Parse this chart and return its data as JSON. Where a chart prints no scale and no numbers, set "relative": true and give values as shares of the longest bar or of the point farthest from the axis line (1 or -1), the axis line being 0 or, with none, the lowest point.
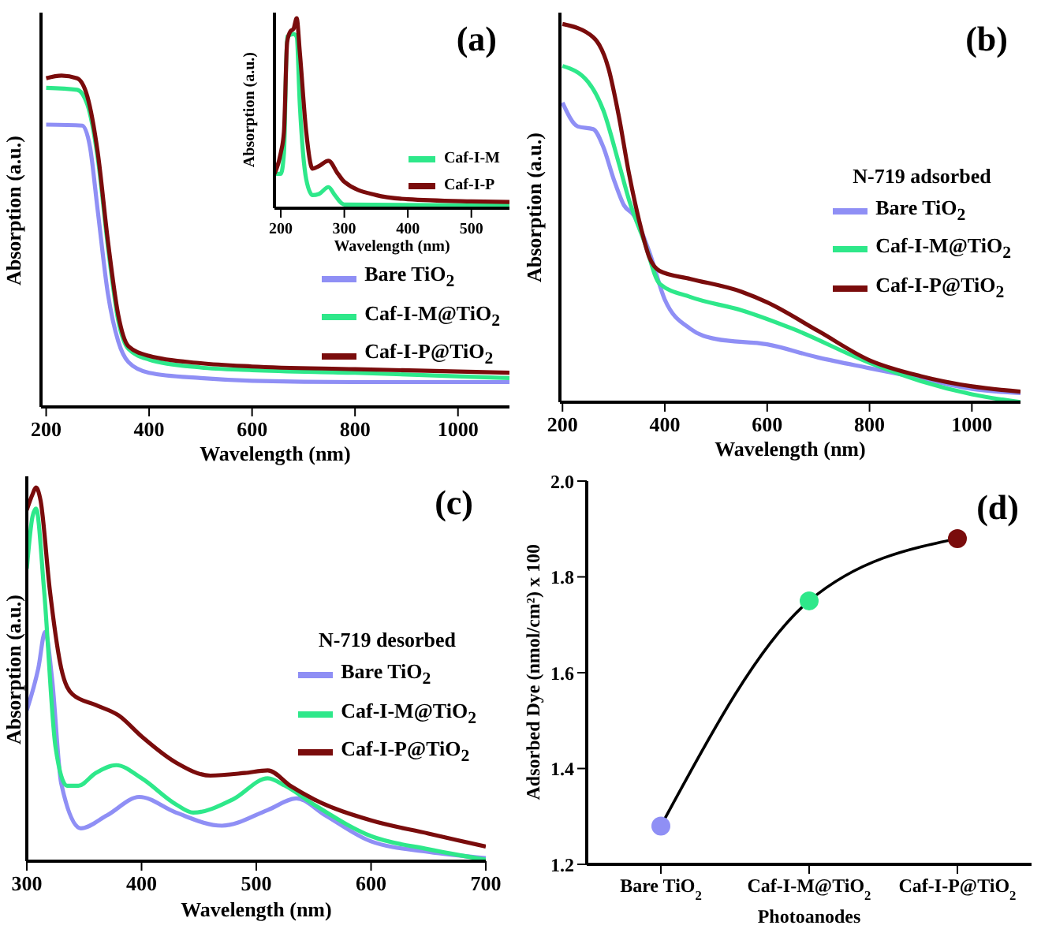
{
  "chart_data": [
    {
      "type": "line",
      "title": "(a)",
      "xlabel": "Wavelength (nm)",
      "ylabel": "Absorption (a.u.)",
      "relative": true,
      "xlim": [
        190,
        1100
      ],
      "xticks": [
        200,
        400,
        600,
        800,
        1000
      ],
      "legend": "bottom right",
      "line_style": "solid",
      "series": [
        {
          "name": "Bare TiO$_{2}$",
          "color": "#8f8ff5",
          "x": [
            200,
            270,
            285,
            300,
            320,
            340,
            360,
            400,
            500,
            600,
            800,
            1100
          ],
          "values": [
            0.852,
            0.849,
            0.786,
            0.595,
            0.341,
            0.198,
            0.135,
            0.103,
            0.087,
            0.079,
            0.075,
            0.075
          ]
        },
        {
          "name": "Caf-I-M@TiO$_{2}$",
          "color": "#2ee88a",
          "x": [
            200,
            260,
            280,
            300,
            320,
            340,
            360,
            400,
            500,
            600,
            800,
            1100
          ],
          "values": [
            0.963,
            0.957,
            0.913,
            0.754,
            0.484,
            0.262,
            0.175,
            0.143,
            0.119,
            0.111,
            0.103,
            0.087
          ]
        },
        {
          "name": "Caf-I-P@TiO$_{2}$",
          "color": "#7a0c0c",
          "x": [
            200,
            230,
            260,
            280,
            300,
            320,
            340,
            360,
            400,
            500,
            600,
            800,
            1100
          ],
          "values": [
            0.992,
            1,
            0.992,
            0.937,
            0.77,
            0.5,
            0.278,
            0.183,
            0.154,
            0.132,
            0.122,
            0.114,
            0.103
          ]
        }
      ]
    },
    {
      "type": "line",
      "xlabel": "Wavelength (nm)",
      "ylabel": "Absorption (a.u.)",
      "relative": true,
      "xlim": [
        190,
        560
      ],
      "xticks": [
        200,
        300,
        400,
        500
      ],
      "legend": "bottom right",
      "line_style": "solid",
      "series": [
        {
          "name": "Caf-I-M",
          "color": "#2ee88a",
          "x": [
            190,
            200,
            205,
            210,
            220,
            225,
            230,
            240,
            250,
            260,
            275,
            285,
            295,
            300,
            560
          ],
          "values": [
            0.181,
            0.181,
            0.292,
            0.903,
            0.917,
            0.903,
            0.542,
            0.153,
            0.069,
            0.075,
            0.111,
            0.069,
            0.028,
            0.019,
            0.014
          ]
        },
        {
          "name": "Caf-I-P",
          "color": "#7a0c0c",
          "x": [
            190,
            200,
            205,
            210,
            215,
            220,
            225,
            230,
            240,
            250,
            260,
            275,
            290,
            300,
            350,
            400,
            500,
            560
          ],
          "values": [
            0.181,
            0.292,
            0.403,
            0.875,
            0.931,
            0.944,
            1,
            0.819,
            0.403,
            0.208,
            0.222,
            0.25,
            0.181,
            0.139,
            0.069,
            0.047,
            0.036,
            0.033
          ]
        }
      ]
    },
    {
      "type": "line",
      "title": "(b)",
      "xlabel": "Wavelength (nm)",
      "ylabel": "Absorption (a.u.)",
      "relative": true,
      "xlim": [
        195,
        1095
      ],
      "xticks": [
        200,
        400,
        600,
        800,
        1000
      ],
      "legend": "center right",
      "legend_title": "N-719 adsorbed",
      "line_style": "solid",
      "series": [
        {
          "name": "Bare TiO$_{2}$",
          "color": "#8f8ff5",
          "x": [
            200,
            230,
            260,
            280,
            300,
            320,
            340,
            370,
            400,
            450,
            500,
            600,
            700,
            800,
            900,
            1000,
            1095
          ],
          "values": [
            0.792,
            0.729,
            0.722,
            0.674,
            0.59,
            0.521,
            0.493,
            0.396,
            0.271,
            0.194,
            0.167,
            0.153,
            0.118,
            0.09,
            0.063,
            0.035,
            0.024
          ]
        },
        {
          "name": "Caf-I-M@TiO$_{2}$",
          "color": "#2ee88a",
          "x": [
            200,
            250,
            280,
            310,
            330,
            360,
            390,
            450,
            550,
            650,
            800,
            900,
            1000,
            1095
          ],
          "values": [
            0.889,
            0.847,
            0.771,
            0.632,
            0.535,
            0.424,
            0.313,
            0.278,
            0.243,
            0.194,
            0.104,
            0.056,
            0.021,
            0
          ]
        },
        {
          "name": "Caf-I-P@TiO$_{2}$",
          "color": "#7a0c0c",
          "x": [
            200,
            260,
            290,
            310,
            330,
            350,
            370,
            390,
            450,
            550,
            600,
            700,
            800,
            900,
            1000,
            1095
          ],
          "values": [
            1,
            0.965,
            0.882,
            0.757,
            0.604,
            0.479,
            0.382,
            0.347,
            0.326,
            0.292,
            0.264,
            0.188,
            0.111,
            0.069,
            0.042,
            0.028
          ]
        }
      ]
    },
    {
      "type": "line",
      "title": "(c)",
      "xlabel": "Wavelength (nm)",
      "ylabel": "Absorption (a.u.)",
      "relative": true,
      "xlim": [
        300,
        700
      ],
      "xticks": [
        300,
        400,
        500,
        600,
        700
      ],
      "legend": "center right",
      "legend_title": "N-719 desorbed",
      "line_style": "solid",
      "series": [
        {
          "name": "Bare TiO$_{2}$",
          "color": "#8f8ff5",
          "x": [
            300,
            310,
            316,
            322,
            330,
            347,
            370,
            398,
            430,
            470,
            510,
            535,
            560,
            600,
            650,
            700
          ],
          "values": [
            0.404,
            0.516,
            0.614,
            0.488,
            0.208,
            0.088,
            0.123,
            0.172,
            0.13,
            0.095,
            0.137,
            0.168,
            0.123,
            0.053,
            0.025,
            0.008
          ]
        },
        {
          "name": "Caf-I-M@TiO$_{2}$",
          "color": "#2ee88a",
          "x": [
            300,
            305,
            308,
            315,
            325,
            335,
            345,
            360,
            378,
            400,
            430,
            445,
            480,
            510,
            525,
            550,
            600,
            650,
            700
          ],
          "values": [
            0.783,
            0.923,
            0.944,
            0.727,
            0.306,
            0.202,
            0.202,
            0.236,
            0.257,
            0.222,
            0.152,
            0.13,
            0.166,
            0.222,
            0.202,
            0.152,
            0.067,
            0.032,
            0.004
          ]
        },
        {
          "name": "Caf-I-P@TiO$_{2}$",
          "color": "#7a0c0c",
          "x": [
            300,
            305,
            308,
            312,
            320,
            330,
            340,
            360,
            380,
            400,
            430,
            460,
            490,
            510,
            530,
            550,
            600,
            650,
            700
          ],
          "values": [
            0.94,
            0.982,
            1,
            0.965,
            0.727,
            0.516,
            0.446,
            0.418,
            0.39,
            0.334,
            0.264,
            0.229,
            0.236,
            0.243,
            0.201,
            0.166,
            0.109,
            0.074,
            0.039
          ]
        }
      ]
    },
    {
      "type": "line",
      "title": "(d)",
      "xlabel": "Photoanodes",
      "ylabel": "Adsorbed Dye (nmol/cm²) x 100",
      "categories": [
        "Bare TiO$_{2}$",
        "Caf-I-M@TiO$_{2}$",
        "Caf-I-P@TiO$_{2}$"
      ],
      "values": [
        1.28,
        1.75,
        1.88
      ],
      "color": "#000000",
      "colors": [
        "#8f8ff5",
        "#2ee88a",
        "#7a0c0c"
      ],
      "marker": "circle",
      "line_style": "solid",
      "ylim": [
        1.2,
        2.0
      ],
      "yticks": [
        1.2,
        1.4,
        1.6,
        1.8,
        {
          "value": 2,
          "label": "2.0"
        }
      ]
    }
  ]
}
